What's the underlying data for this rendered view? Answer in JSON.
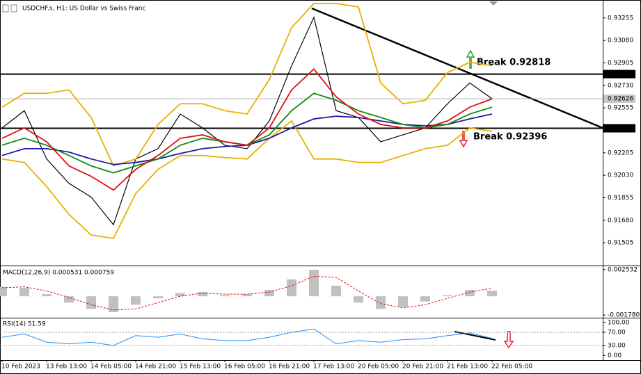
{
  "chart_data": [
    {
      "type": "line",
      "title": "USDCHF.s, H1:  US Dollar vs Swiss Franc",
      "categories": [
        "10 Feb 2023",
        null,
        "13 Feb 13:00",
        null,
        "14 Feb 05:00",
        null,
        "14 Feb 21:00",
        null,
        "15 Feb 13:00",
        null,
        "16 Feb 05:00",
        null,
        "16 Feb 21:00",
        null,
        "17 Feb 13:00",
        null,
        "20 Feb 05:00",
        null,
        "20 Feb 21:00",
        null,
        "21 Feb 13:00",
        null,
        "22 Feb 05:00"
      ],
      "series": [
        {
          "color": "#000000",
          "values": [
            0.92399,
            0.92533,
            0.92157,
            0.91968,
            0.9186,
            0.91645,
            0.92157,
            0.92237,
            0.92507,
            0.92399,
            0.92264,
            0.92237,
            0.92453,
            0.92883,
            0.9326,
            0.92533,
            0.9248,
            0.92291,
            0.92345,
            0.92399,
            0.92587,
            0.92749,
            0.92626
          ]
        },
        {
          "color": "#e8b000",
          "values": [
            0.9256,
            0.92668,
            0.92668,
            0.92695,
            0.9248,
            0.92103,
            0.92157,
            0.92426,
            0.92587,
            0.92587,
            0.92533,
            0.92507,
            0.92776,
            0.9318,
            0.93368,
            0.93368,
            0.93341,
            0.92749,
            0.92587,
            0.92614,
            0.9283,
            0.9291,
            0.92883
          ]
        },
        {
          "color": "#e8b000",
          "values": [
            0.92157,
            0.9213,
            0.91942,
            0.91726,
            0.91565,
            0.91538,
            0.91888,
            0.92076,
            0.92184,
            0.92184,
            0.92168,
            0.92157,
            0.92318,
            0.92453,
            0.92157,
            0.92157,
            0.9213,
            0.9213,
            0.92184,
            0.92237,
            0.92264,
            0.92399,
            0.92372
          ]
        },
        {
          "color": "#1a1aa6",
          "values": [
            0.92184,
            0.92237,
            0.92237,
            0.92211,
            0.92157,
            0.92114,
            0.9213,
            0.92157,
            0.922,
            0.92237,
            0.92254,
            0.92264,
            0.92318,
            0.92399,
            0.92469,
            0.9249,
            0.9248,
            0.92453,
            0.92426,
            0.92415,
            0.92426,
            0.92469,
            0.92507
          ]
        },
        {
          "color": "#138a13",
          "values": [
            0.92264,
            0.92318,
            0.92264,
            0.92184,
            0.92103,
            0.92049,
            0.92103,
            0.92157,
            0.92264,
            0.92318,
            0.92291,
            0.92264,
            0.92345,
            0.92533,
            0.92668,
            0.92614,
            0.92533,
            0.9248,
            0.92426,
            0.92399,
            0.92426,
            0.92507,
            0.92561
          ]
        },
        {
          "color": "#e01010",
          "values": [
            0.92318,
            0.92399,
            0.92291,
            0.92103,
            0.92022,
            0.91915,
            0.92076,
            0.92184,
            0.92318,
            0.92345,
            0.92291,
            0.92264,
            0.92399,
            0.92695,
            0.92857,
            0.92641,
            0.92507,
            0.92426,
            0.92399,
            0.92399,
            0.92453,
            0.92561,
            0.92625
          ]
        }
      ],
      "ylim": [
        0.91338,
        0.93384
      ],
      "yticks": [
        0.93255,
        {
          "value": 0.9308,
          "label": "0.93080"
        },
        0.92905,
        {
          "value": 0.9273,
          "label": "0.92730"
        },
        0.92555,
        0.92205,
        {
          "value": 0.9203,
          "label": "0.92030"
        },
        0.91855,
        {
          "value": 0.9168,
          "label": "0.91680"
        },
        0.91505
      ],
      "levels": [
        0.92818,
        0.92396
      ],
      "last": 0.92626,
      "annotations": [
        "Break 0.92818",
        "Break 0.92396"
      ]
    },
    {
      "type": "macd",
      "title": "MACD(12,26,9) 0.000531 0.000759",
      "histogram": {
        "color": "#c0c0c0",
        "values": [
          0.0009,
          0.0008,
          0.0002,
          -0.0006,
          -0.0012,
          -0.0015,
          -0.0008,
          -0.0002,
          0.0003,
          0.0004,
          0.0001,
          0.0002,
          0.0006,
          0.0016,
          0.0025,
          0.001,
          -0.0006,
          -0.0012,
          -0.001,
          -0.0005,
          0.0001,
          0.0006,
          0.000531
        ]
      },
      "signal": {
        "color": "#e01010",
        "values": [
          0.0008,
          0.0009,
          0.0005,
          -0.0001,
          -0.0008,
          -0.0013,
          -0.0012,
          -0.0006,
          0.0,
          0.0003,
          0.0002,
          0.0002,
          0.0004,
          0.001,
          0.0019,
          0.0018,
          0.0005,
          -0.0007,
          -0.0011,
          -0.0008,
          -0.0002,
          0.0004,
          0.000759
        ]
      },
      "ylim": [
        -0.0019,
        0.00265
      ],
      "yticks": [
        0.002532,
        {
          "value": -0.00178,
          "label": "-0.001780"
        }
      ]
    },
    {
      "type": "line",
      "title": "RSI(14) 51.59",
      "series": [
        {
          "color": "#1e90ff",
          "values": [
            55,
            65,
            40,
            35,
            40,
            30,
            60,
            55,
            65,
            50,
            45,
            45,
            55,
            70,
            80,
            35,
            45,
            40,
            48,
            50,
            60,
            68,
            51.59
          ]
        }
      ],
      "ylim": [
        -10,
        108
      ],
      "yticks": [
        {
          "value": 100,
          "label": "100.00"
        },
        {
          "value": 70,
          "label": "70.00"
        },
        {
          "value": 30,
          "label": "30.00"
        },
        {
          "value": 0,
          "label": "0.00"
        }
      ],
      "levels": [
        70,
        30
      ]
    }
  ]
}
